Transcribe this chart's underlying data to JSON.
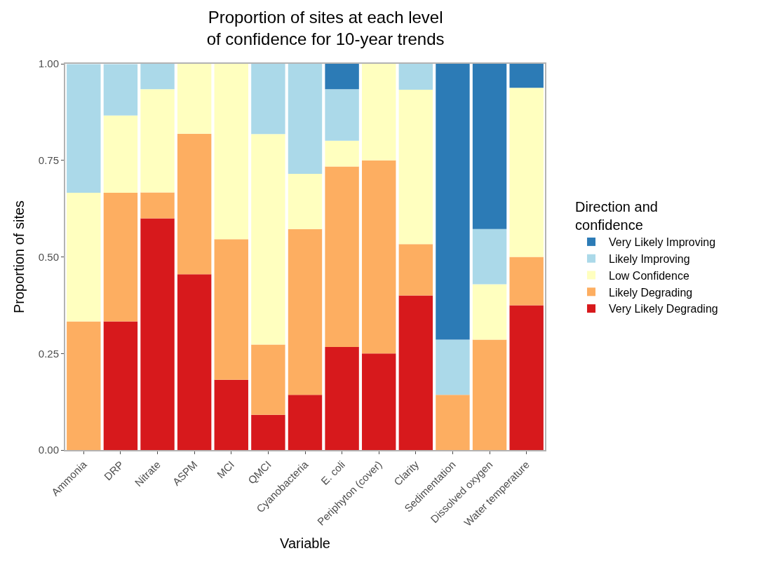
{
  "chart_data": {
    "type": "bar",
    "stacked": true,
    "title": "Proportion of sites at each level\nof confidence for 10-year trends",
    "xlabel": "Variable",
    "ylabel": "Proportion of sites",
    "legend_title": "Direction and\nconfidence",
    "categories": [
      "Ammonia",
      "DRP",
      "Nitrate",
      "ASPM",
      "MCI",
      "QMCI",
      "Cyanobacteria",
      "E. coli",
      "Periphyton (cover)",
      "Clarity",
      "Sedimentation",
      "Dissolved oxygen",
      "Water temperature"
    ],
    "series": [
      {
        "name": "Very Likely Degrading",
        "color": "#d7191c",
        "values": [
          null,
          0.333,
          0.6,
          0.455,
          0.182,
          0.091,
          0.143,
          0.267,
          0.25,
          0.4,
          null,
          null,
          0.375
        ]
      },
      {
        "name": "Likely Degrading",
        "color": "#fdae61",
        "values": [
          0.333,
          0.333,
          0.067,
          0.364,
          0.364,
          0.182,
          0.429,
          0.467,
          0.5,
          0.133,
          0.143,
          0.286,
          0.125
        ]
      },
      {
        "name": "Low Confidence",
        "color": "#ffffbf",
        "values": [
          0.333,
          0.2,
          0.267,
          0.182,
          0.455,
          0.545,
          0.143,
          0.067,
          0.25,
          0.4,
          null,
          0.143,
          0.438
        ]
      },
      {
        "name": "Likely Improving",
        "color": "#abd9e9",
        "values": [
          0.333,
          0.133,
          0.067,
          null,
          null,
          0.182,
          0.286,
          0.133,
          null,
          0.067,
          0.143,
          0.143,
          null
        ]
      },
      {
        "name": "Very Likely Improving",
        "color": "#2c7bb6",
        "values": [
          null,
          null,
          null,
          null,
          null,
          null,
          null,
          0.067,
          null,
          null,
          0.714,
          0.429,
          0.062
        ]
      }
    ],
    "ylim": [
      0,
      1
    ],
    "yticks": [
      {
        "value": 0,
        "label": "0.00"
      },
      {
        "value": 0.25,
        "label": "0.25"
      },
      {
        "value": 0.5,
        "label": "0.50"
      },
      {
        "value": 0.75,
        "label": "0.75"
      },
      {
        "value": 1,
        "label": "1.00"
      }
    ],
    "legend": "right"
  }
}
